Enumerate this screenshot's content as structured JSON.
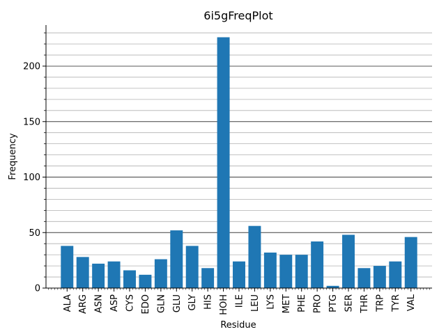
{
  "chart_data": {
    "type": "bar",
    "title": "6i5gFreqPlot",
    "xlabel": "Residue",
    "ylabel": "Frequency",
    "ylim": [
      0,
      237
    ],
    "yticks": [
      0,
      50,
      100,
      150,
      200
    ],
    "major_grid": true,
    "minor_grid": true,
    "bar_color": "#1f77b4",
    "categories": [
      "ALA",
      "ARG",
      "ASN",
      "ASP",
      "CYS",
      "EDO",
      "GLN",
      "GLU",
      "GLY",
      "HIS",
      "HOH",
      "ILE",
      "LEU",
      "LYS",
      "MET",
      "PHE",
      "PRO",
      "PTG",
      "SER",
      "THR",
      "TRP",
      "TYR",
      "VAL"
    ],
    "values": [
      38,
      28,
      22,
      24,
      16,
      12,
      26,
      52,
      38,
      18,
      226,
      24,
      56,
      32,
      30,
      30,
      42,
      2,
      48,
      18,
      20,
      24,
      46
    ]
  }
}
